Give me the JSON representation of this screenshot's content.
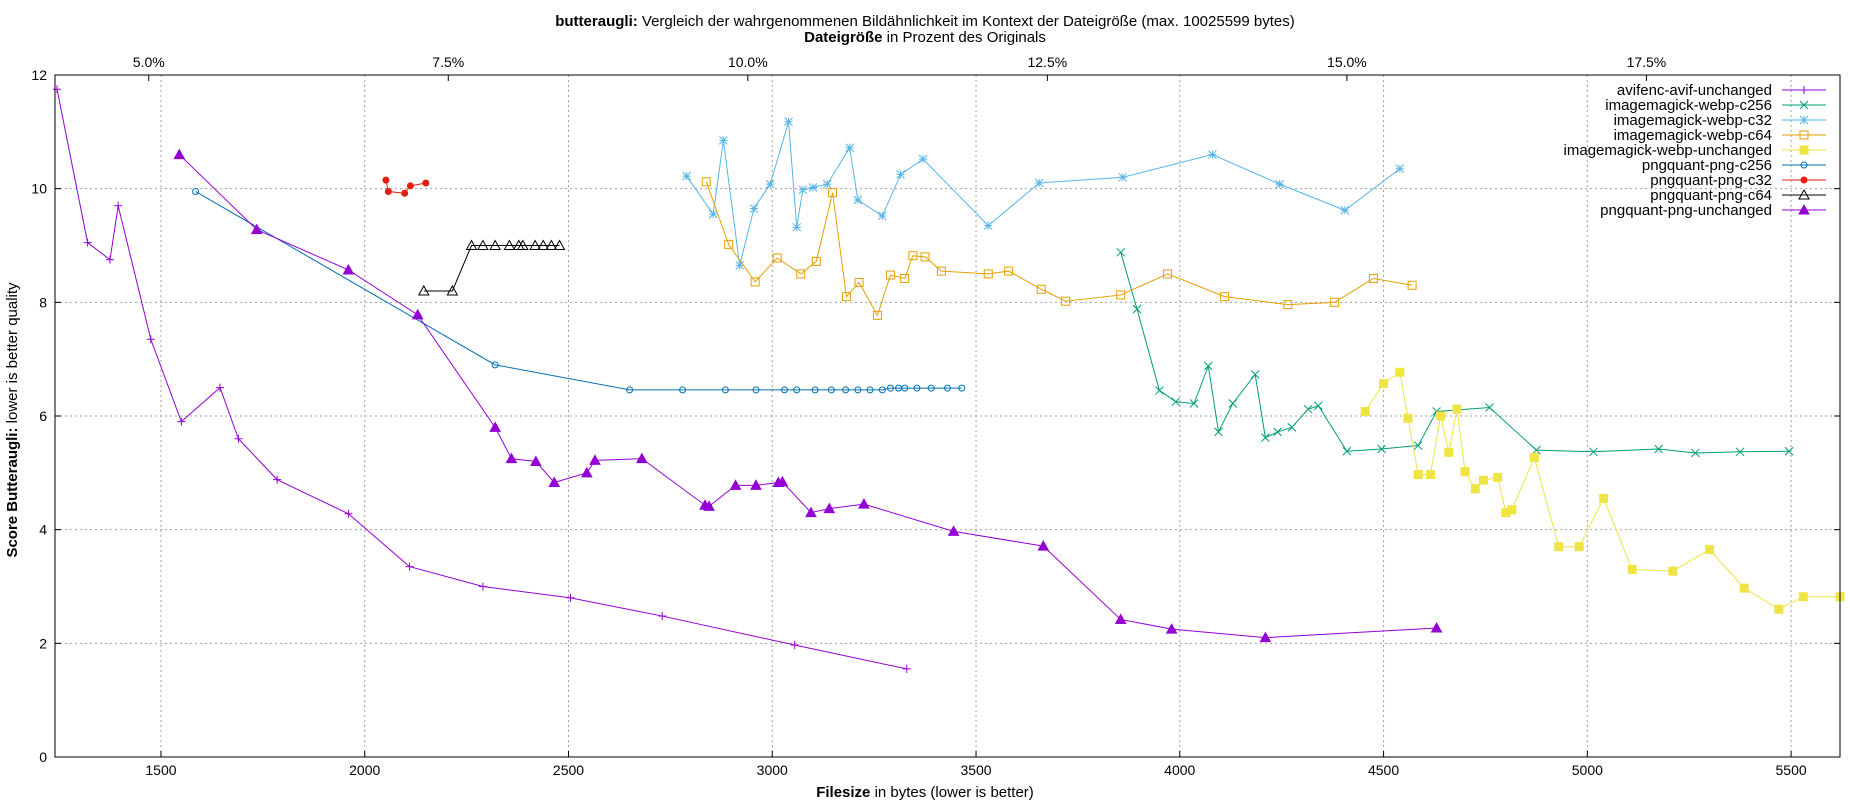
{
  "chart_data": {
    "type": "line",
    "title_bold": "butteraugli:",
    "title_rest": " Vergleich der wahrgenommenen Bildähnlichkeit im Kontext der Dateigröße (max. 10025599 bytes)",
    "top_axis_label_bold": "Dateigröße",
    "top_axis_label_rest": " in Prozent des Originals",
    "xlabel_bold": "Filesize",
    "xlabel_rest": " in bytes (lower is better)",
    "ylabel_bold": "Score Butteraugli:",
    "ylabel_rest": " lower is better quality",
    "xlim": [
      1240,
      5620
    ],
    "ylim": [
      0,
      12
    ],
    "x_ticks": [
      1500,
      2000,
      2500,
      3000,
      3500,
      4000,
      4500,
      5000,
      5500
    ],
    "x_tick_labels": [
      "1500",
      "2000",
      "2500",
      "3000",
      "3500",
      "4000",
      "4500",
      "5000",
      "5500"
    ],
    "y_ticks": [
      0,
      2,
      4,
      6,
      8,
      10,
      12
    ],
    "y_tick_labels": [
      "0",
      "2",
      "4",
      "6",
      "8",
      "10",
      "12"
    ],
    "top_ticks_x": [
      1470,
      2205,
      2940,
      3675,
      4410,
      5145
    ],
    "top_tick_labels": [
      "5.0%",
      "7.5%",
      "10.0%",
      "12.5%",
      "15.0%",
      "17.5%"
    ],
    "grid": true,
    "legend_position": "top-right",
    "series": [
      {
        "name": "avifenc-avif-unchanged",
        "color": "#9400d3",
        "marker": "plus",
        "x": [
          1245,
          1320,
          1375,
          1395,
          1475,
          1550,
          1645,
          1690,
          1785,
          1960,
          2110,
          2290,
          2505,
          2730,
          3055,
          3330
        ],
        "y": [
          11.75,
          9.05,
          8.75,
          9.7,
          7.35,
          5.9,
          6.5,
          5.6,
          4.88,
          4.28,
          3.35,
          3.0,
          2.8,
          2.48,
          1.97,
          1.55
        ]
      },
      {
        "name": "imagemagick-webp-c256",
        "color": "#009e73",
        "marker": "x",
        "x": [
          3855,
          3895,
          3950,
          3990,
          4035,
          4070,
          4095,
          4130,
          4185,
          4210,
          4240,
          4275,
          4315,
          4340,
          4410,
          4495,
          4585,
          4630,
          4760,
          4875,
          5015,
          5175,
          5265,
          5375,
          5495
        ],
        "y": [
          8.88,
          7.88,
          6.45,
          6.25,
          6.22,
          6.88,
          5.72,
          6.22,
          6.73,
          5.62,
          5.72,
          5.8,
          6.12,
          6.18,
          5.38,
          5.42,
          5.48,
          6.08,
          6.15,
          5.4,
          5.37,
          5.42,
          5.35,
          5.37,
          5.38
        ]
      },
      {
        "name": "imagemagick-webp-c32",
        "color": "#56b4e9",
        "marker": "star",
        "x": [
          2790,
          2855,
          2880,
          2920,
          2955,
          2995,
          3040,
          3060,
          3075,
          3100,
          3135,
          3190,
          3210,
          3270,
          3315,
          3370,
          3530,
          3655,
          3860,
          4080,
          4245,
          4405,
          4540
        ],
        "y": [
          10.22,
          9.55,
          10.85,
          8.65,
          9.65,
          10.08,
          11.18,
          9.32,
          9.98,
          10.02,
          10.08,
          10.72,
          9.8,
          9.52,
          10.25,
          10.52,
          9.35,
          10.1,
          10.2,
          10.6,
          10.08,
          9.62,
          10.35
        ]
      },
      {
        "name": "imagemagick-webp-c64",
        "color": "#e69f00",
        "marker": "square",
        "x": [
          2838,
          2893,
          2958,
          3012,
          3070,
          3108,
          3148,
          3182,
          3213,
          3258,
          3290,
          3325,
          3345,
          3375,
          3415,
          3530,
          3580,
          3660,
          3720,
          3855,
          3970,
          4110,
          4265,
          4380,
          4475,
          4570
        ],
        "y": [
          10.12,
          9.02,
          8.36,
          8.78,
          8.5,
          8.72,
          9.93,
          8.1,
          8.35,
          7.77,
          8.48,
          8.42,
          8.82,
          8.8,
          8.55,
          8.5,
          8.55,
          8.23,
          8.02,
          8.13,
          8.5,
          8.1,
          7.96,
          8.0,
          8.42,
          8.3
        ]
      },
      {
        "name": "imagemagick-webp-unchanged",
        "color": "#f0e442",
        "marker": "filled-square",
        "x": [
          4455,
          4500,
          4540,
          4560,
          4585,
          4615,
          4640,
          4660,
          4680,
          4700,
          4725,
          4745,
          4780,
          4800,
          4815,
          4870,
          4930,
          4980,
          5040,
          5110,
          5210,
          5300,
          5385,
          5470,
          5530,
          5620
        ],
        "y": [
          6.08,
          6.57,
          6.77,
          5.96,
          4.97,
          4.97,
          6.0,
          5.36,
          6.12,
          5.02,
          4.72,
          4.87,
          4.92,
          4.3,
          4.35,
          5.27,
          3.7,
          3.7,
          4.55,
          3.3,
          3.27,
          3.65,
          2.97,
          2.6,
          2.82,
          2.82
        ]
      },
      {
        "name": "pngquant-png-c256",
        "color": "#0072b2",
        "marker": "circle",
        "x": [
          1585,
          2320,
          2650,
          2780,
          2885,
          2960,
          3030,
          3060,
          3105,
          3145,
          3180,
          3210,
          3240,
          3270,
          3290,
          3310,
          3325,
          3355,
          3390,
          3430,
          3465
        ],
        "y": [
          9.95,
          6.9,
          6.46,
          6.46,
          6.46,
          6.46,
          6.46,
          6.46,
          6.46,
          6.46,
          6.46,
          6.46,
          6.46,
          6.46,
          6.49,
          6.49,
          6.49,
          6.49,
          6.49,
          6.49,
          6.49
        ]
      },
      {
        "name": "pngquant-png-c32",
        "color": "#e51e10",
        "marker": "filled-circle",
        "x": [
          2052,
          2058,
          2098,
          2112,
          2150
        ],
        "y": [
          10.15,
          9.95,
          9.92,
          10.05,
          10.1
        ]
      },
      {
        "name": "pngquant-png-c64",
        "color": "#000000",
        "marker": "triangle",
        "x": [
          2145,
          2215,
          2262,
          2290,
          2320,
          2355,
          2378,
          2388,
          2418,
          2438,
          2458,
          2478
        ],
        "y": [
          8.2,
          8.2,
          9.0,
          9.0,
          9.0,
          9.0,
          9.0,
          9.0,
          9.0,
          9.0,
          9.0,
          9.0
        ]
      },
      {
        "name": "pngquant-png-unchanged",
        "color": "#9400d3",
        "marker": "filled-triangle",
        "x": [
          1545,
          1735,
          1960,
          2130,
          2320,
          2360,
          2420,
          2465,
          2545,
          2565,
          2680,
          2835,
          2845,
          2910,
          2960,
          3015,
          3025,
          3095,
          3140,
          3225,
          3445,
          3665,
          3855,
          3980,
          4210,
          4630
        ],
        "y": [
          10.6,
          9.28,
          8.57,
          7.78,
          5.8,
          5.25,
          5.2,
          4.83,
          5.0,
          5.22,
          5.25,
          4.43,
          4.41,
          4.78,
          4.78,
          4.83,
          4.84,
          4.3,
          4.37,
          4.45,
          3.97,
          3.71,
          2.42,
          2.25,
          2.1,
          2.27
        ]
      }
    ]
  }
}
